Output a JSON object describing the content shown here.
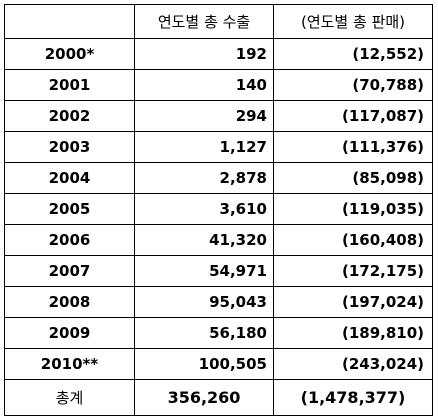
{
  "table": {
    "headers": [
      "",
      "연도별 총 수출",
      "(연도별 총 판매)"
    ],
    "rows": [
      {
        "year": "2000*",
        "exports": "192",
        "sales": "(12,552)"
      },
      {
        "year": "2001",
        "exports": "140",
        "sales": "(70,788)"
      },
      {
        "year": "2002",
        "exports": "294",
        "sales": "(117,087)"
      },
      {
        "year": "2003",
        "exports": "1,127",
        "sales": "(111,376)"
      },
      {
        "year": "2004",
        "exports": "2,878",
        "sales": "(85,098)"
      },
      {
        "year": "2005",
        "exports": "3,610",
        "sales": "(119,035)"
      },
      {
        "year": "2006",
        "exports": "41,320",
        "sales": "(160,408)"
      },
      {
        "year": "2007",
        "exports": "54,971",
        "sales": "(172,175)"
      },
      {
        "year": "2008",
        "exports": "95,043",
        "sales": "(197,024)"
      },
      {
        "year": "2009",
        "exports": "56,180",
        "sales": "(189,810)"
      },
      {
        "year": "2010**",
        "exports": "100,505",
        "sales": "(243,024)"
      }
    ],
    "total": {
      "label": "총계",
      "exports": "356,260",
      "sales": "(1,478,377)"
    }
  }
}
